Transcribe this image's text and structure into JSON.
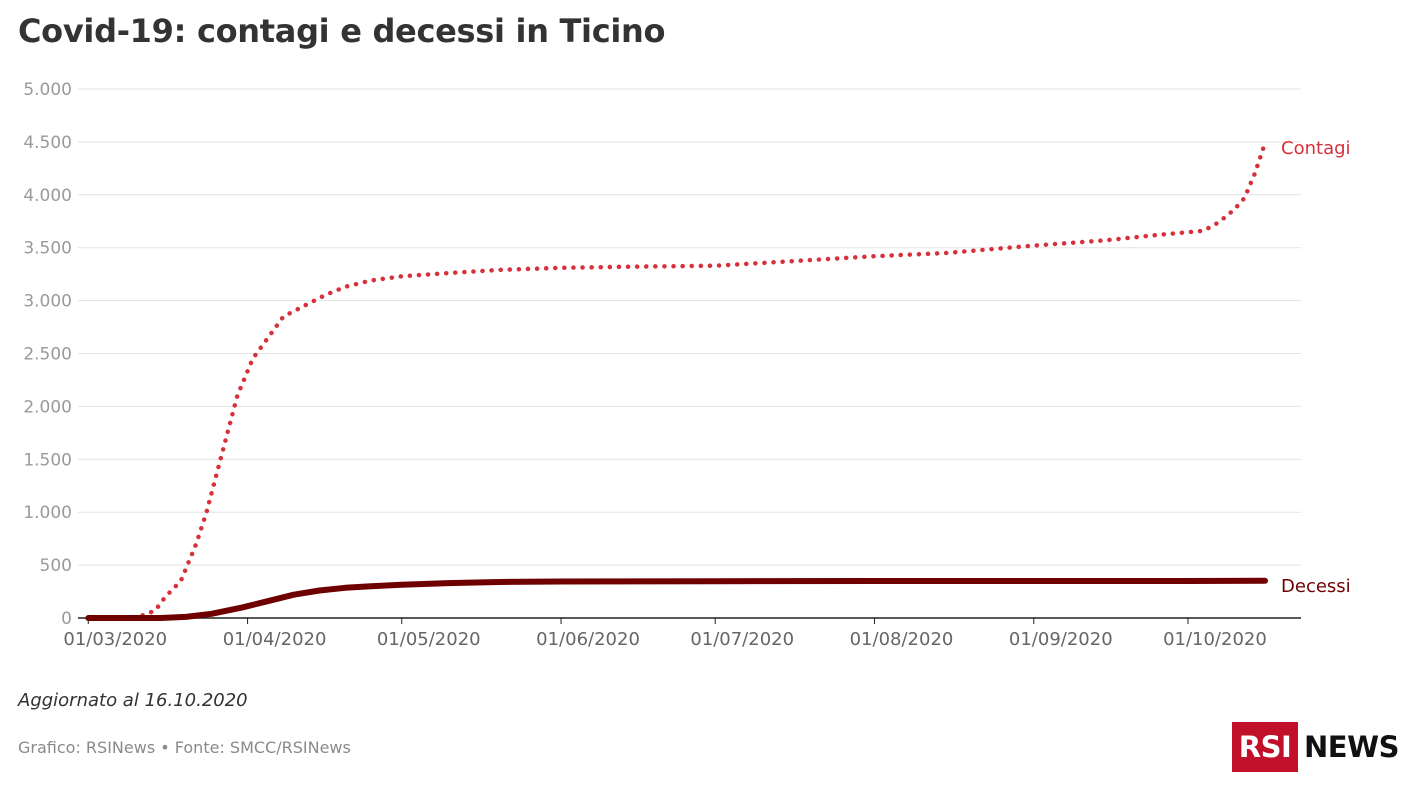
{
  "header": {
    "title": "Covid-19: contagi e decessi in Ticino"
  },
  "footer": {
    "updated": "Aggiornato al 16.10.2020",
    "credit": "Grafico: RSINews • Fonte: SMCC/RSINews",
    "logo_box": "RSI",
    "logo_text": "NEWS"
  },
  "colors": {
    "contagi": "#d8303a",
    "decessi": "#6e0000",
    "grid": "#e3e3e3",
    "axis": "#222222"
  },
  "chart_data": {
    "type": "line",
    "title": "Covid-19: contagi e decessi in Ticino",
    "xlabel": "",
    "ylabel": "",
    "ylim": [
      0,
      5000
    ],
    "xlim": [
      "2020-02-28",
      "2020-10-23"
    ],
    "y_ticks": [
      {
        "value": 0,
        "label": "0"
      },
      {
        "value": 500,
        "label": "500"
      },
      {
        "value": 1000,
        "label": "1.000"
      },
      {
        "value": 1500,
        "label": "1.500"
      },
      {
        "value": 2000,
        "label": "2.000"
      },
      {
        "value": 2500,
        "label": "2.500"
      },
      {
        "value": 3000,
        "label": "3.000"
      },
      {
        "value": 3500,
        "label": "3.500"
      },
      {
        "value": 4000,
        "label": "4.000"
      },
      {
        "value": 4500,
        "label": "4.500"
      },
      {
        "value": 5000,
        "label": "5.000"
      }
    ],
    "x_ticks": [
      {
        "date": "2020-03-01",
        "label": "01/03/2020"
      },
      {
        "date": "2020-04-01",
        "label": "01/04/2020"
      },
      {
        "date": "2020-05-01",
        "label": "01/05/2020"
      },
      {
        "date": "2020-06-01",
        "label": "01/06/2020"
      },
      {
        "date": "2020-07-01",
        "label": "01/07/2020"
      },
      {
        "date": "2020-08-01",
        "label": "01/08/2020"
      },
      {
        "date": "2020-09-01",
        "label": "01/09/2020"
      },
      {
        "date": "2020-10-01",
        "label": "01/10/2020"
      }
    ],
    "grid": true,
    "legend": "direct labels at line ends (right)",
    "series": [
      {
        "name": "Contagi",
        "style": "dotted",
        "points": [
          [
            "2020-03-01",
            0
          ],
          [
            "2020-03-09",
            0
          ],
          [
            "2020-03-11",
            15
          ],
          [
            "2020-03-14",
            70
          ],
          [
            "2020-03-16",
            200
          ],
          [
            "2020-03-19",
            350
          ],
          [
            "2020-03-22",
            700
          ],
          [
            "2020-03-24",
            1000
          ],
          [
            "2020-03-27",
            1550
          ],
          [
            "2020-03-30",
            2100
          ],
          [
            "2020-04-02",
            2450
          ],
          [
            "2020-04-05",
            2650
          ],
          [
            "2020-04-08",
            2850
          ],
          [
            "2020-04-12",
            2950
          ],
          [
            "2020-04-16",
            3050
          ],
          [
            "2020-04-20",
            3130
          ],
          [
            "2020-04-25",
            3190
          ],
          [
            "2020-05-01",
            3230
          ],
          [
            "2020-05-10",
            3260
          ],
          [
            "2020-05-20",
            3290
          ],
          [
            "2020-06-01",
            3310
          ],
          [
            "2020-06-15",
            3320
          ],
          [
            "2020-07-01",
            3330
          ],
          [
            "2020-07-15",
            3370
          ],
          [
            "2020-08-01",
            3420
          ],
          [
            "2020-08-15",
            3450
          ],
          [
            "2020-09-01",
            3520
          ],
          [
            "2020-09-15",
            3570
          ],
          [
            "2020-09-25",
            3620
          ],
          [
            "2020-10-04",
            3660
          ],
          [
            "2020-10-07",
            3740
          ],
          [
            "2020-10-10",
            3860
          ],
          [
            "2020-10-12",
            3970
          ],
          [
            "2020-10-14",
            4200
          ],
          [
            "2020-10-16",
            4490
          ]
        ]
      },
      {
        "name": "Decessi",
        "style": "solid",
        "points": [
          [
            "2020-03-01",
            0
          ],
          [
            "2020-03-15",
            0
          ],
          [
            "2020-03-20",
            10
          ],
          [
            "2020-03-25",
            40
          ],
          [
            "2020-03-31",
            100
          ],
          [
            "2020-04-05",
            160
          ],
          [
            "2020-04-10",
            220
          ],
          [
            "2020-04-15",
            260
          ],
          [
            "2020-04-20",
            285
          ],
          [
            "2020-04-25",
            300
          ],
          [
            "2020-05-01",
            315
          ],
          [
            "2020-05-10",
            330
          ],
          [
            "2020-05-20",
            340
          ],
          [
            "2020-06-01",
            345
          ],
          [
            "2020-07-01",
            348
          ],
          [
            "2020-08-01",
            350
          ],
          [
            "2020-09-01",
            350
          ],
          [
            "2020-10-01",
            350
          ],
          [
            "2020-10-16",
            352
          ]
        ]
      }
    ]
  }
}
